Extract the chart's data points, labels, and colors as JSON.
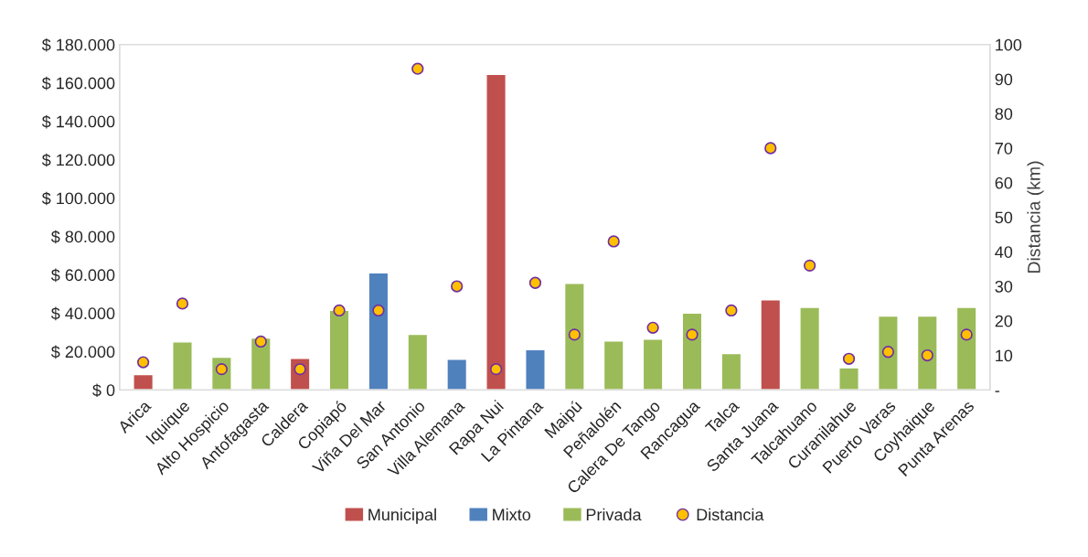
{
  "chart_data": {
    "type": "bar",
    "ylabel": null,
    "y2label": "Distancia (km)",
    "categories": [
      "Arica",
      "Iquique",
      "Alto Hospicio",
      "Antofagasta",
      "Caldera",
      "Copiapó",
      "Viña Del Mar",
      "San Antonio",
      "Villa Alemana",
      "Rapa Nui",
      "La Pintana",
      "Maipú",
      "Peñalolén",
      "Calera De Tango",
      "Rancagua",
      "Talca",
      "Santa Juana",
      "Talcahuano",
      "Curanilahue",
      "Puerto Varas",
      "Coyhaique",
      "Punta Arenas"
    ],
    "series": [
      {
        "name": "Municipal",
        "color": "#c0504d",
        "values": [
          8000,
          null,
          null,
          null,
          16500,
          null,
          null,
          null,
          null,
          164500,
          null,
          null,
          null,
          null,
          null,
          null,
          47000,
          null,
          null,
          null,
          null,
          null
        ]
      },
      {
        "name": "Mixto",
        "color": "#4f81bd",
        "values": [
          null,
          null,
          null,
          null,
          null,
          null,
          61000,
          null,
          16000,
          null,
          21000,
          null,
          null,
          null,
          null,
          null,
          null,
          null,
          null,
          null,
          null,
          null
        ]
      },
      {
        "name": "Privada",
        "color": "#9bbb59",
        "values": [
          null,
          25000,
          17000,
          27000,
          null,
          41500,
          null,
          29000,
          null,
          null,
          null,
          55500,
          25500,
          26500,
          40000,
          19000,
          null,
          43000,
          11500,
          38500,
          38500,
          43000
        ]
      },
      {
        "name": "Distancia",
        "type": "scatter",
        "axis": "y2",
        "color": "#ffc000",
        "marker": "circle",
        "values": [
          8,
          25,
          6,
          14,
          6,
          23,
          23,
          93,
          30,
          6,
          31,
          16,
          43,
          18,
          16,
          23,
          70,
          36,
          9,
          11,
          10,
          16
        ]
      }
    ],
    "ylim": [
      0,
      180000
    ],
    "yticks": [
      {
        "value": 0,
        "label": "$ 0"
      },
      {
        "value": 20000,
        "label": "$ 20.000"
      },
      {
        "value": 40000,
        "label": "$ 40.000"
      },
      {
        "value": 60000,
        "label": "$ 60.000"
      },
      {
        "value": 80000,
        "label": "$ 80.000"
      },
      {
        "value": 100000,
        "label": "$ 100.000"
      },
      {
        "value": 120000,
        "label": "$ 120.000"
      },
      {
        "value": 140000,
        "label": "$ 140.000"
      },
      {
        "value": 160000,
        "label": "$ 160.000"
      },
      {
        "value": 180000,
        "label": "$ 180.000"
      }
    ],
    "y2lim": [
      0,
      100
    ],
    "y2ticks": [
      {
        "value": 0,
        "label": "-"
      },
      10,
      20,
      30,
      40,
      50,
      60,
      70,
      80,
      90,
      100
    ],
    "legend": "bottom",
    "grid": false
  }
}
